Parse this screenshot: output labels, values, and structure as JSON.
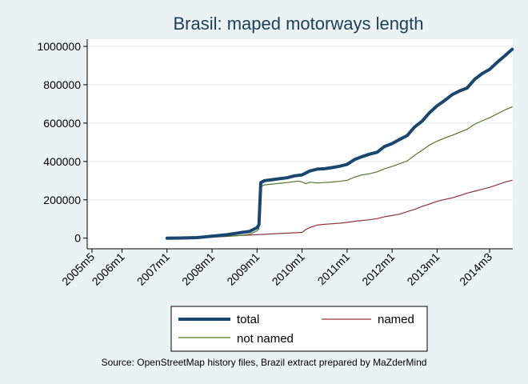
{
  "chart_data": {
    "type": "line",
    "title": "Brasil: maped motorways length",
    "xlabel": "",
    "ylabel": "",
    "ylim": [
      0,
      1000000
    ],
    "y_ticks": [
      {
        "value": 0,
        "label": "0"
      },
      {
        "value": 200000,
        "label": "200000"
      },
      {
        "value": 400000,
        "label": "400000"
      },
      {
        "value": 600000,
        "label": "600000"
      },
      {
        "value": 800000,
        "label": "800000"
      },
      {
        "value": 1000000,
        "label": "1000000"
      }
    ],
    "x_ticks": [
      {
        "month": 0,
        "label": "2005m5"
      },
      {
        "month": 8,
        "label": "2006m1"
      },
      {
        "month": 20,
        "label": "2007m1"
      },
      {
        "month": 32,
        "label": "2008m1"
      },
      {
        "month": 44,
        "label": "2009m1"
      },
      {
        "month": 56,
        "label": "2010m1"
      },
      {
        "month": 68,
        "label": "2011m1"
      },
      {
        "month": 80,
        "label": "2012m1"
      },
      {
        "month": 92,
        "label": "2013m1"
      },
      {
        "month": 106,
        "label": "2014m3"
      }
    ],
    "x_unit": "months since 2005m5",
    "series": [
      {
        "name": "total",
        "color": "#1a476f",
        "points": [
          [
            20,
            0
          ],
          [
            24,
            1000
          ],
          [
            28,
            3000
          ],
          [
            32,
            10000
          ],
          [
            36,
            18000
          ],
          [
            40,
            30000
          ],
          [
            42,
            35000
          ],
          [
            44,
            55000
          ],
          [
            44.5,
            70000
          ],
          [
            45,
            290000
          ],
          [
            46,
            300000
          ],
          [
            48,
            305000
          ],
          [
            50,
            310000
          ],
          [
            52,
            315000
          ],
          [
            54,
            325000
          ],
          [
            56,
            330000
          ],
          [
            58,
            350000
          ],
          [
            60,
            360000
          ],
          [
            62,
            362000
          ],
          [
            64,
            368000
          ],
          [
            66,
            375000
          ],
          [
            68,
            385000
          ],
          [
            70,
            410000
          ],
          [
            72,
            425000
          ],
          [
            74,
            438000
          ],
          [
            76,
            448000
          ],
          [
            78,
            478000
          ],
          [
            80,
            493000
          ],
          [
            82,
            515000
          ],
          [
            84,
            535000
          ],
          [
            86,
            580000
          ],
          [
            88,
            610000
          ],
          [
            90,
            655000
          ],
          [
            92,
            690000
          ],
          [
            94,
            718000
          ],
          [
            96,
            748000
          ],
          [
            98,
            768000
          ],
          [
            100,
            783000
          ],
          [
            102,
            828000
          ],
          [
            104,
            858000
          ],
          [
            106,
            880000
          ],
          [
            108,
            917000
          ],
          [
            110,
            950000
          ],
          [
            112,
            985000
          ]
        ]
      },
      {
        "name": "named",
        "color": "#90353b",
        "points": [
          [
            20,
            0
          ],
          [
            24,
            1000
          ],
          [
            28,
            2000
          ],
          [
            32,
            6000
          ],
          [
            36,
            10000
          ],
          [
            40,
            14000
          ],
          [
            44,
            18000
          ],
          [
            46,
            20000
          ],
          [
            50,
            24000
          ],
          [
            54,
            28000
          ],
          [
            56,
            30000
          ],
          [
            57,
            45000
          ],
          [
            58,
            55000
          ],
          [
            60,
            68000
          ],
          [
            62,
            72000
          ],
          [
            64,
            75000
          ],
          [
            66,
            78000
          ],
          [
            68,
            82000
          ],
          [
            70,
            88000
          ],
          [
            72,
            92000
          ],
          [
            74,
            96000
          ],
          [
            76,
            102000
          ],
          [
            78,
            112000
          ],
          [
            80,
            118000
          ],
          [
            82,
            125000
          ],
          [
            84,
            138000
          ],
          [
            86,
            150000
          ],
          [
            88,
            165000
          ],
          [
            90,
            178000
          ],
          [
            92,
            192000
          ],
          [
            94,
            202000
          ],
          [
            96,
            210000
          ],
          [
            98,
            222000
          ],
          [
            100,
            235000
          ],
          [
            102,
            245000
          ],
          [
            104,
            255000
          ],
          [
            106,
            265000
          ],
          [
            108,
            278000
          ],
          [
            110,
            292000
          ],
          [
            112,
            302000
          ]
        ]
      },
      {
        "name": "not named",
        "color": "#55752f",
        "points": [
          [
            20,
            0
          ],
          [
            24,
            500
          ],
          [
            28,
            1500
          ],
          [
            32,
            5000
          ],
          [
            36,
            9000
          ],
          [
            40,
            15000
          ],
          [
            42,
            20000
          ],
          [
            44,
            38000
          ],
          [
            44.5,
            50000
          ],
          [
            45,
            270000
          ],
          [
            46,
            278000
          ],
          [
            48,
            282000
          ],
          [
            50,
            286000
          ],
          [
            52,
            290000
          ],
          [
            54,
            295000
          ],
          [
            55,
            298000
          ],
          [
            56,
            293000
          ],
          [
            57,
            284000
          ],
          [
            58,
            292000
          ],
          [
            60,
            288000
          ],
          [
            62,
            290000
          ],
          [
            64,
            293000
          ],
          [
            66,
            296000
          ],
          [
            68,
            302000
          ],
          [
            70,
            318000
          ],
          [
            72,
            330000
          ],
          [
            74,
            336000
          ],
          [
            76,
            346000
          ],
          [
            78,
            362000
          ],
          [
            80,
            374000
          ],
          [
            82,
            388000
          ],
          [
            84,
            402000
          ],
          [
            86,
            432000
          ],
          [
            88,
            458000
          ],
          [
            90,
            486000
          ],
          [
            92,
            506000
          ],
          [
            94,
            522000
          ],
          [
            96,
            536000
          ],
          [
            98,
            552000
          ],
          [
            100,
            568000
          ],
          [
            102,
            594000
          ],
          [
            104,
            612000
          ],
          [
            106,
            628000
          ],
          [
            108,
            648000
          ],
          [
            110,
            668000
          ],
          [
            112,
            684000
          ]
        ]
      }
    ],
    "legend": {
      "placement": "bottom",
      "entries": [
        "total",
        "named",
        "not named"
      ]
    },
    "note": "Source: OpenStreetMap history files, Brazil extract prepared by MaZderMind"
  }
}
